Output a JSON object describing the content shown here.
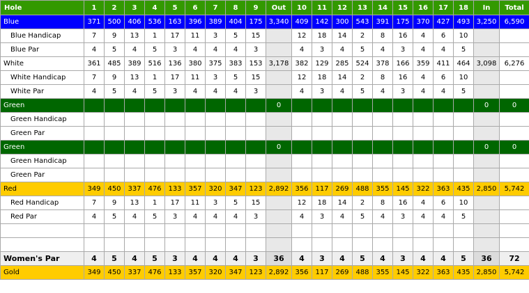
{
  "header": {
    "label": "Hole",
    "holes": [
      "1",
      "2",
      "3",
      "4",
      "5",
      "6",
      "7",
      "8",
      "9",
      "Out",
      "10",
      "11",
      "12",
      "13",
      "14",
      "15",
      "16",
      "17",
      "18",
      "In",
      "Total"
    ]
  },
  "rows": [
    {
      "style": "blue",
      "sub": false,
      "label": "Blue",
      "cells": [
        "371",
        "500",
        "406",
        "536",
        "163",
        "396",
        "389",
        "404",
        "175",
        "3,340",
        "409",
        "142",
        "300",
        "543",
        "391",
        "175",
        "370",
        "427",
        "493",
        "3,250",
        "6,590"
      ]
    },
    {
      "style": "plain",
      "sub": true,
      "label": "Blue Handicap",
      "cells": [
        "7",
        "9",
        "13",
        "1",
        "17",
        "11",
        "3",
        "5",
        "15",
        "",
        "12",
        "18",
        "14",
        "2",
        "8",
        "16",
        "4",
        "6",
        "10",
        "",
        ""
      ]
    },
    {
      "style": "plain",
      "sub": true,
      "label": "Blue Par",
      "cells": [
        "4",
        "5",
        "4",
        "5",
        "3",
        "4",
        "4",
        "4",
        "3",
        "",
        "4",
        "3",
        "4",
        "5",
        "4",
        "3",
        "4",
        "4",
        "5",
        "",
        ""
      ]
    },
    {
      "style": "plain",
      "sub": false,
      "label": "White",
      "cells": [
        "361",
        "485",
        "389",
        "516",
        "136",
        "380",
        "375",
        "383",
        "153",
        "3,178",
        "382",
        "129",
        "285",
        "524",
        "378",
        "166",
        "359",
        "411",
        "464",
        "3,098",
        "6,276"
      ]
    },
    {
      "style": "plain",
      "sub": true,
      "label": "White Handicap",
      "cells": [
        "7",
        "9",
        "13",
        "1",
        "17",
        "11",
        "3",
        "5",
        "15",
        "",
        "12",
        "18",
        "14",
        "2",
        "8",
        "16",
        "4",
        "6",
        "10",
        "",
        ""
      ]
    },
    {
      "style": "plain",
      "sub": true,
      "label": "White Par",
      "cells": [
        "4",
        "5",
        "4",
        "5",
        "3",
        "4",
        "4",
        "4",
        "3",
        "",
        "4",
        "3",
        "4",
        "5",
        "4",
        "3",
        "4",
        "4",
        "5",
        "",
        ""
      ]
    },
    {
      "style": "green",
      "sub": false,
      "label": "Green",
      "cells": [
        "",
        "",
        "",
        "",
        "",
        "",
        "",
        "",
        "",
        "0",
        "",
        "",
        "",
        "",
        "",
        "",
        "",
        "",
        "",
        "0",
        "0"
      ]
    },
    {
      "style": "plain",
      "sub": true,
      "label": "Green Handicap",
      "cells": [
        "",
        "",
        "",
        "",
        "",
        "",
        "",
        "",
        "",
        "",
        "",
        "",
        "",
        "",
        "",
        "",
        "",
        "",
        "",
        "",
        ""
      ]
    },
    {
      "style": "plain",
      "sub": true,
      "label": "Green Par",
      "cells": [
        "",
        "",
        "",
        "",
        "",
        "",
        "",
        "",
        "",
        "",
        "",
        "",
        "",
        "",
        "",
        "",
        "",
        "",
        "",
        "",
        ""
      ]
    },
    {
      "style": "green",
      "sub": false,
      "label": "Green",
      "cells": [
        "",
        "",
        "",
        "",
        "",
        "",
        "",
        "",
        "",
        "0",
        "",
        "",
        "",
        "",
        "",
        "",
        "",
        "",
        "",
        "0",
        "0"
      ]
    },
    {
      "style": "plain",
      "sub": true,
      "label": "Green Handicap",
      "cells": [
        "",
        "",
        "",
        "",
        "",
        "",
        "",
        "",
        "",
        "",
        "",
        "",
        "",
        "",
        "",
        "",
        "",
        "",
        "",
        "",
        ""
      ]
    },
    {
      "style": "plain",
      "sub": true,
      "label": "Green Par",
      "cells": [
        "",
        "",
        "",
        "",
        "",
        "",
        "",
        "",
        "",
        "",
        "",
        "",
        "",
        "",
        "",
        "",
        "",
        "",
        "",
        "",
        ""
      ]
    },
    {
      "style": "red",
      "sub": false,
      "label": "Red",
      "cells": [
        "349",
        "450",
        "337",
        "476",
        "133",
        "357",
        "320",
        "347",
        "123",
        "2,892",
        "356",
        "117",
        "269",
        "488",
        "355",
        "145",
        "322",
        "363",
        "435",
        "2,850",
        "5,742"
      ]
    },
    {
      "style": "plain",
      "sub": true,
      "label": "Red Handicap",
      "cells": [
        "7",
        "9",
        "13",
        "1",
        "17",
        "11",
        "3",
        "5",
        "15",
        "",
        "12",
        "18",
        "14",
        "2",
        "8",
        "16",
        "4",
        "6",
        "10",
        "",
        ""
      ]
    },
    {
      "style": "plain",
      "sub": true,
      "label": "Red Par",
      "cells": [
        "4",
        "5",
        "4",
        "5",
        "3",
        "4",
        "4",
        "4",
        "3",
        "",
        "4",
        "3",
        "4",
        "5",
        "4",
        "3",
        "4",
        "4",
        "5",
        "",
        ""
      ]
    },
    {
      "style": "plain",
      "sub": false,
      "label": "",
      "cells": [
        "",
        "",
        "",
        "",
        "",
        "",
        "",
        "",
        "",
        "",
        "",
        "",
        "",
        "",
        "",
        "",
        "",
        "",
        "",
        "",
        ""
      ]
    },
    {
      "style": "plain",
      "sub": false,
      "label": "",
      "cells": [
        "",
        "",
        "",
        "",
        "",
        "",
        "",
        "",
        "",
        "",
        "",
        "",
        "",
        "",
        "",
        "",
        "",
        "",
        "",
        "",
        ""
      ]
    },
    {
      "style": "wpar",
      "sub": false,
      "label": "Women's Par",
      "cells": [
        "4",
        "5",
        "4",
        "5",
        "3",
        "4",
        "4",
        "4",
        "3",
        "36",
        "4",
        "3",
        "4",
        "5",
        "4",
        "3",
        "4",
        "4",
        "5",
        "36",
        "72"
      ]
    },
    {
      "style": "gold",
      "sub": false,
      "label": "Gold",
      "cells": [
        "349",
        "450",
        "337",
        "476",
        "133",
        "357",
        "320",
        "347",
        "123",
        "2,892",
        "356",
        "117",
        "269",
        "488",
        "355",
        "145",
        "322",
        "363",
        "435",
        "2,850",
        "5,742"
      ]
    }
  ]
}
